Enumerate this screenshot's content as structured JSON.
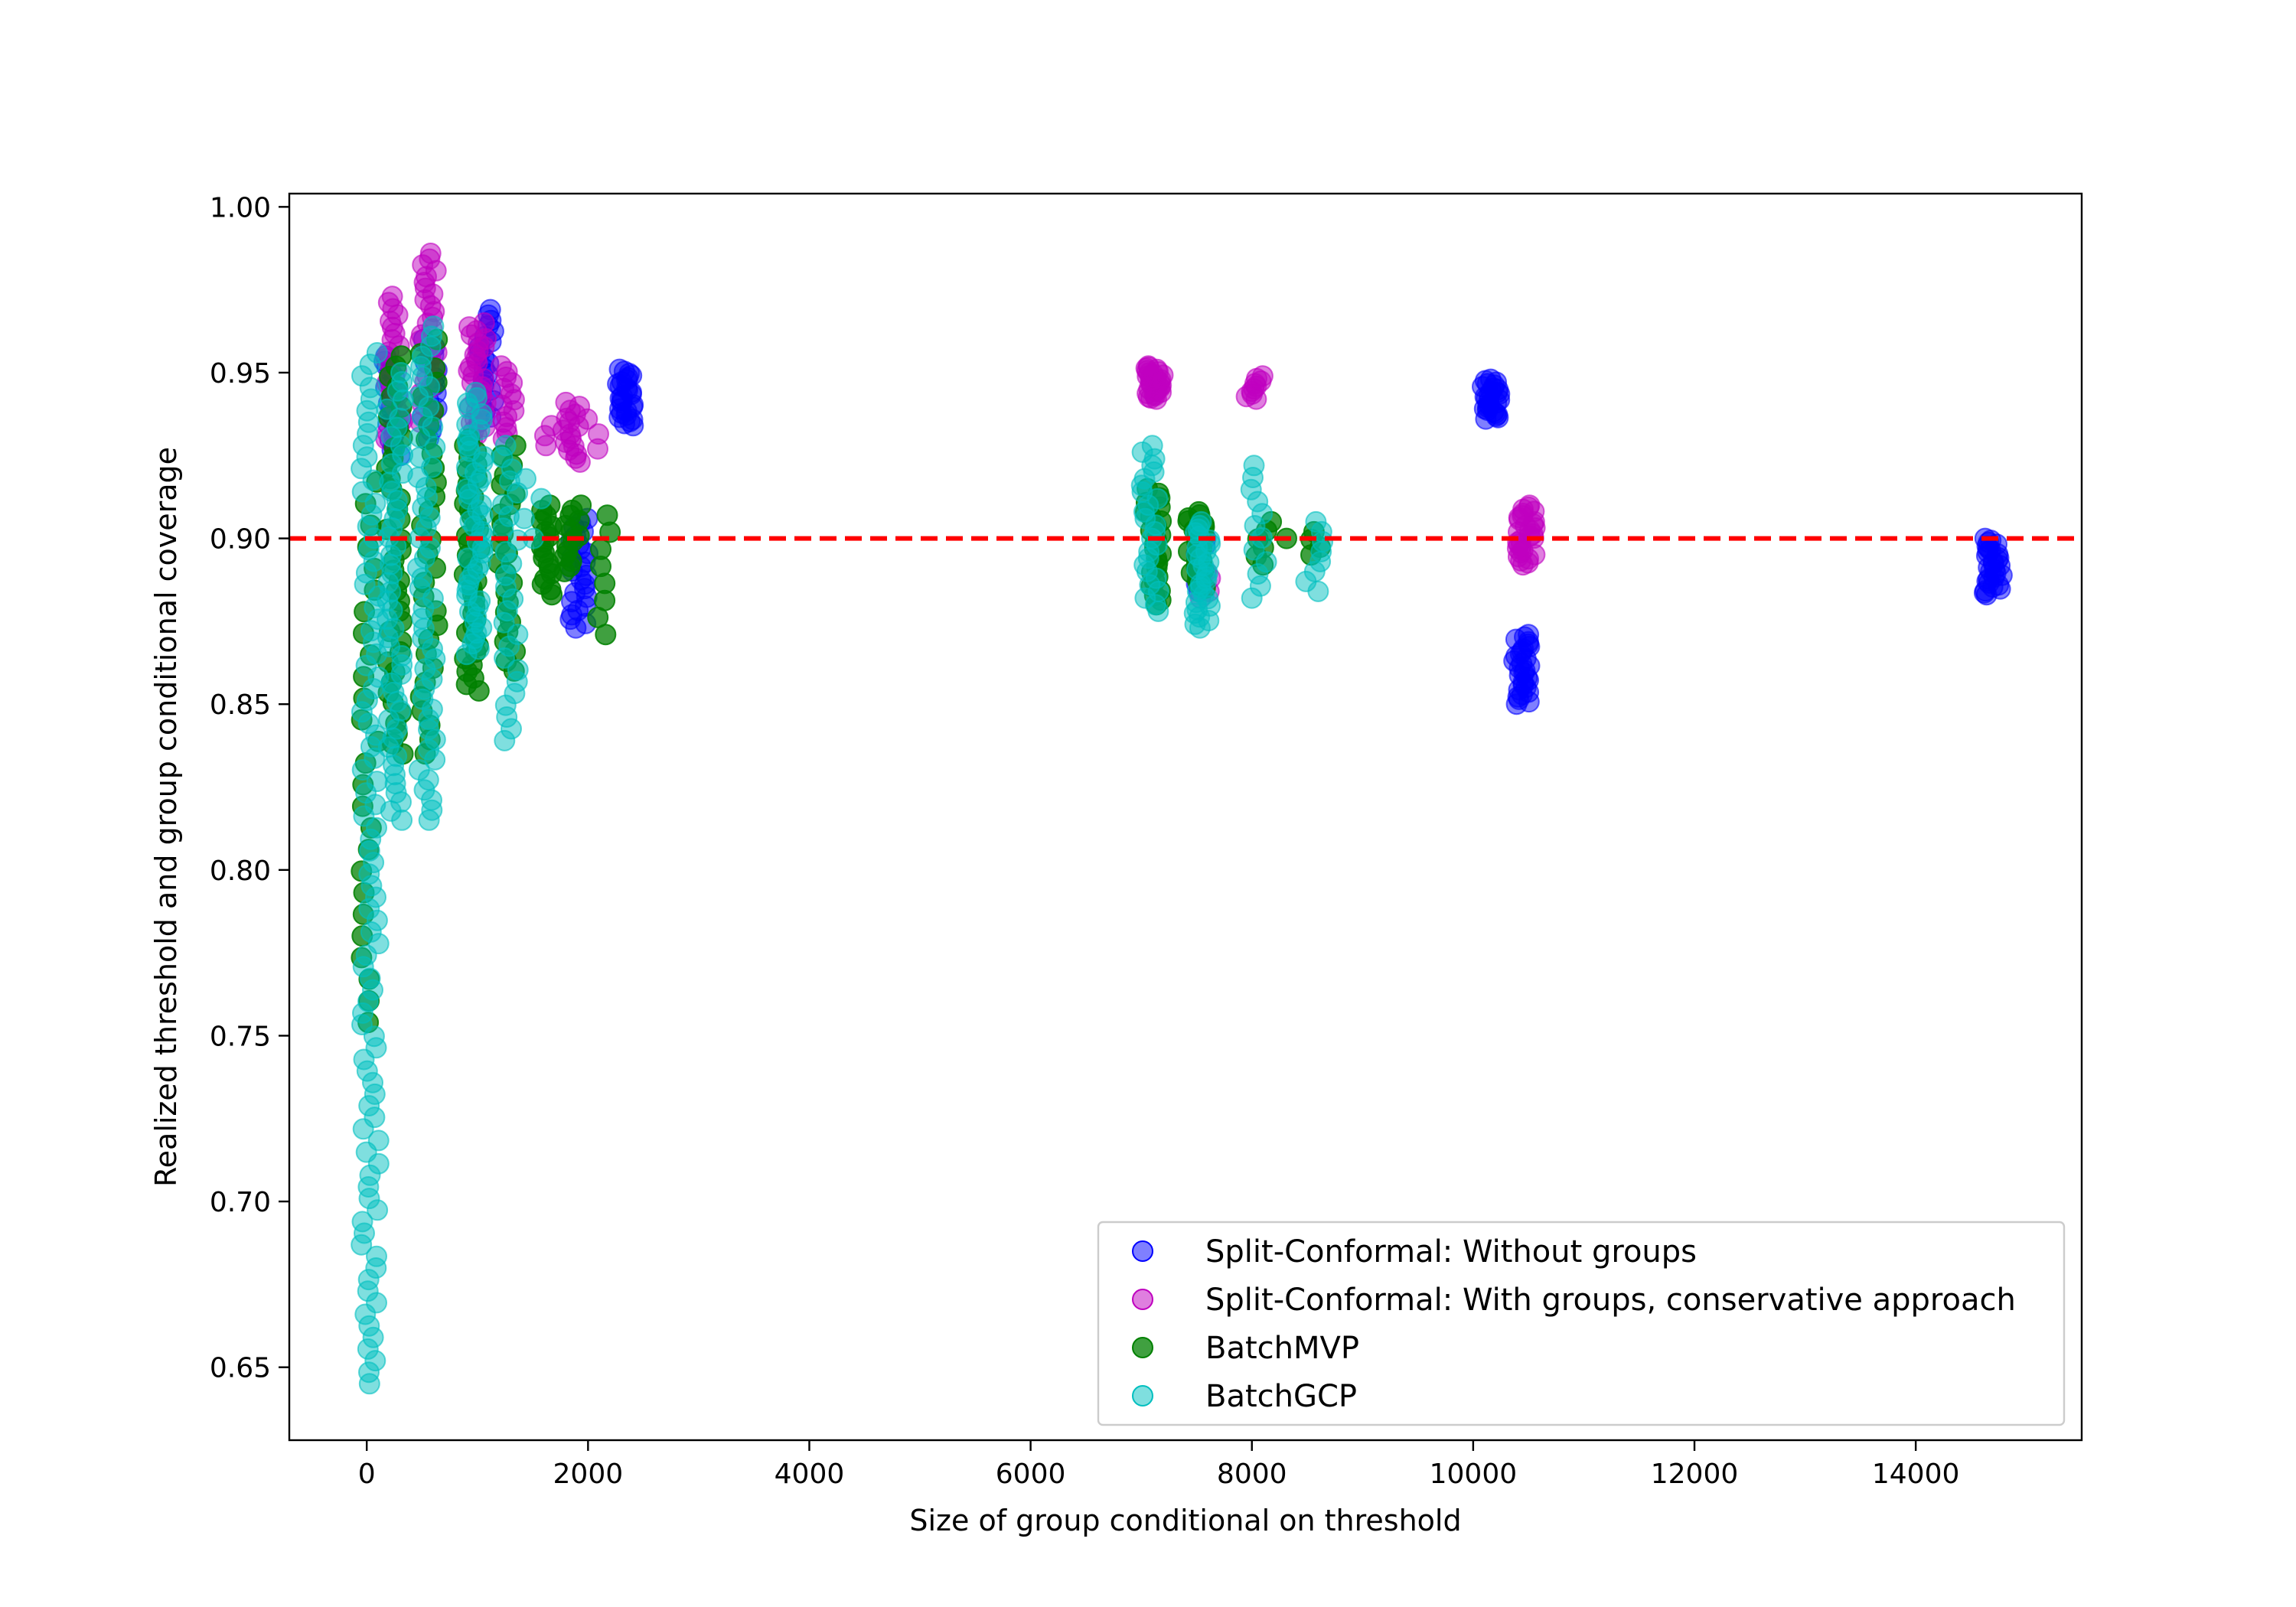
{
  "chart_data": {
    "type": "scatter",
    "title": "",
    "xlabel": "Size of group conditional on threshold",
    "ylabel": "Realized threshold and group conditional coverage",
    "xlim": [
      -700,
      15500
    ],
    "ylim": [
      0.628,
      1.004
    ],
    "xticks": [
      0,
      2000,
      4000,
      6000,
      8000,
      10000,
      12000,
      14000
    ],
    "yticks": [
      0.65,
      0.7,
      0.75,
      0.8,
      0.85,
      0.9,
      0.95,
      1.0
    ],
    "xtick_labels": [
      "0",
      "2000",
      "4000",
      "6000",
      "8000",
      "10000",
      "12000",
      "14000"
    ],
    "ytick_labels": [
      "0.65",
      "0.70",
      "0.75",
      "0.80",
      "0.85",
      "0.90",
      "0.95",
      "1.00"
    ],
    "reference_line": {
      "y": 0.9,
      "color": "#ff0000",
      "style": "dashed"
    },
    "grid": false,
    "legend_position": "lower-right",
    "series": [
      {
        "name": "Split-Conformal: Without groups",
        "color": "#0000ff",
        "alpha": 0.5,
        "clusters": [
          {
            "x": 230,
            "y_min": 0.925,
            "y_max": 0.955,
            "n": 20
          },
          {
            "x": 560,
            "y_min": 0.93,
            "y_max": 0.96,
            "n": 14
          },
          {
            "x": 1080,
            "y_min": 0.935,
            "y_max": 0.969,
            "n": 22
          },
          {
            "x": 1920,
            "y_min": 0.873,
            "y_max": 0.906,
            "n": 26
          },
          {
            "x": 2330,
            "y_min": 0.934,
            "y_max": 0.951,
            "n": 28
          },
          {
            "x": 7550,
            "y_min": 0.884,
            "y_max": 0.9,
            "n": 8
          },
          {
            "x": 10160,
            "y_min": 0.936,
            "y_max": 0.948,
            "n": 28
          },
          {
            "x": 10440,
            "y_min": 0.85,
            "y_max": 0.871,
            "n": 30
          },
          {
            "x": 14700,
            "y_min": 0.883,
            "y_max": 0.9,
            "n": 30
          }
        ]
      },
      {
        "name": "Split-Conformal: With groups, conservative approach",
        "color": "#bf00bf",
        "alpha": 0.5,
        "clusters": [
          {
            "x": 250,
            "y_min": 0.93,
            "y_max": 0.973,
            "n": 24
          },
          {
            "x": 560,
            "y_min": 0.935,
            "y_max": 0.986,
            "n": 30
          },
          {
            "x": 1000,
            "y_min": 0.93,
            "y_max": 0.965,
            "n": 30
          },
          {
            "x": 1280,
            "y_min": 0.93,
            "y_max": 0.952,
            "n": 14
          },
          {
            "x": 1620,
            "y_min": 0.928,
            "y_max": 0.934,
            "n": 3
          },
          {
            "x": 1850,
            "y_min": 0.923,
            "y_max": 0.941,
            "n": 16
          },
          {
            "x": 2050,
            "y_min": 0.927,
            "y_max": 0.936,
            "n": 3
          },
          {
            "x": 7120,
            "y_min": 0.942,
            "y_max": 0.952,
            "n": 30
          },
          {
            "x": 8030,
            "y_min": 0.942,
            "y_max": 0.949,
            "n": 10
          },
          {
            "x": 7600,
            "y_min": 0.882,
            "y_max": 0.89,
            "n": 5
          },
          {
            "x": 10480,
            "y_min": 0.892,
            "y_max": 0.91,
            "n": 30
          }
        ]
      },
      {
        "name": "BatchMVP",
        "color": "#008000",
        "alpha": 0.75,
        "clusters": [
          {
            "x": 30,
            "y_min": 0.754,
            "y_max": 0.917,
            "n": 26
          },
          {
            "x": 260,
            "y_min": 0.835,
            "y_max": 0.955,
            "n": 40
          },
          {
            "x": 560,
            "y_min": 0.835,
            "y_max": 0.96,
            "n": 30
          },
          {
            "x": 950,
            "y_min": 0.854,
            "y_max": 0.93,
            "n": 40
          },
          {
            "x": 1270,
            "y_min": 0.86,
            "y_max": 0.928,
            "n": 24
          },
          {
            "x": 1600,
            "y_min": 0.883,
            "y_max": 0.91,
            "n": 18
          },
          {
            "x": 1860,
            "y_min": 0.89,
            "y_max": 0.91,
            "n": 14
          },
          {
            "x": 2150,
            "y_min": 0.871,
            "y_max": 0.907,
            "n": 8
          },
          {
            "x": 7100,
            "y_min": 0.88,
            "y_max": 0.915,
            "n": 26
          },
          {
            "x": 7500,
            "y_min": 0.885,
            "y_max": 0.908,
            "n": 26
          },
          {
            "x": 8100,
            "y_min": 0.892,
            "y_max": 0.905,
            "n": 6
          },
          {
            "x": 8300,
            "y_min": 0.9,
            "y_max": 0.9,
            "n": 1
          },
          {
            "x": 8550,
            "y_min": 0.895,
            "y_max": 0.902,
            "n": 4
          }
        ]
      },
      {
        "name": "BatchGCP",
        "color": "#00bfbf",
        "alpha": 0.5,
        "clusters": [
          {
            "x": 30,
            "y_min": 0.645,
            "y_max": 0.956,
            "n": 90
          },
          {
            "x": 250,
            "y_min": 0.815,
            "y_max": 0.95,
            "n": 50
          },
          {
            "x": 540,
            "y_min": 0.815,
            "y_max": 0.964,
            "n": 50
          },
          {
            "x": 980,
            "y_min": 0.865,
            "y_max": 0.944,
            "n": 50
          },
          {
            "x": 1290,
            "y_min": 0.839,
            "y_max": 0.928,
            "n": 26
          },
          {
            "x": 1500,
            "y_min": 0.9,
            "y_max": 0.918,
            "n": 4
          },
          {
            "x": 7080,
            "y_min": 0.878,
            "y_max": 0.928,
            "n": 26
          },
          {
            "x": 7560,
            "y_min": 0.873,
            "y_max": 0.905,
            "n": 30
          },
          {
            "x": 8060,
            "y_min": 0.882,
            "y_max": 0.922,
            "n": 12
          },
          {
            "x": 8560,
            "y_min": 0.884,
            "y_max": 0.905,
            "n": 8
          }
        ]
      }
    ]
  }
}
